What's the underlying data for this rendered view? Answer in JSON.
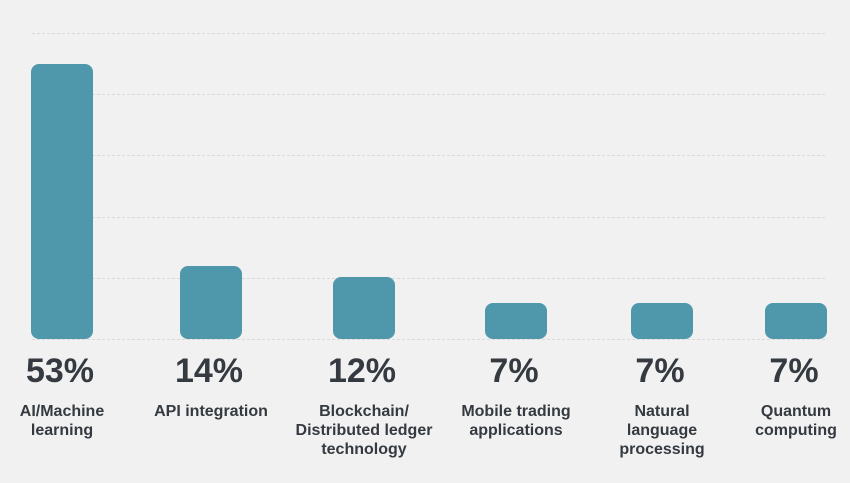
{
  "page": {
    "background_color": "#f1f1f2"
  },
  "chart_data": {
    "type": "bar",
    "title": "",
    "xlabel": "",
    "ylabel": "",
    "categories": [
      "AI/Machine\nlearning",
      "API integration",
      "Blockchain/\nDistributed ledger\ntechnology",
      "Mobile trading\napplications",
      "Natural\nlanguage\nprocessing",
      "Quantum\ncomputing"
    ],
    "values": [
      53,
      14,
      12,
      7,
      7,
      7
    ],
    "value_labels": [
      "53%",
      "14%",
      "12%",
      "7%",
      "7%",
      "7%"
    ],
    "unit": "%",
    "ylim": [
      0,
      59
    ],
    "grid": true,
    "gridline_count": 6,
    "gridline_style": "dashed",
    "legend": false,
    "colors": {
      "bar": "#4f97ab",
      "text": "#343a40",
      "gridline": "#d9d9da",
      "background": "#f1f1f2"
    }
  }
}
